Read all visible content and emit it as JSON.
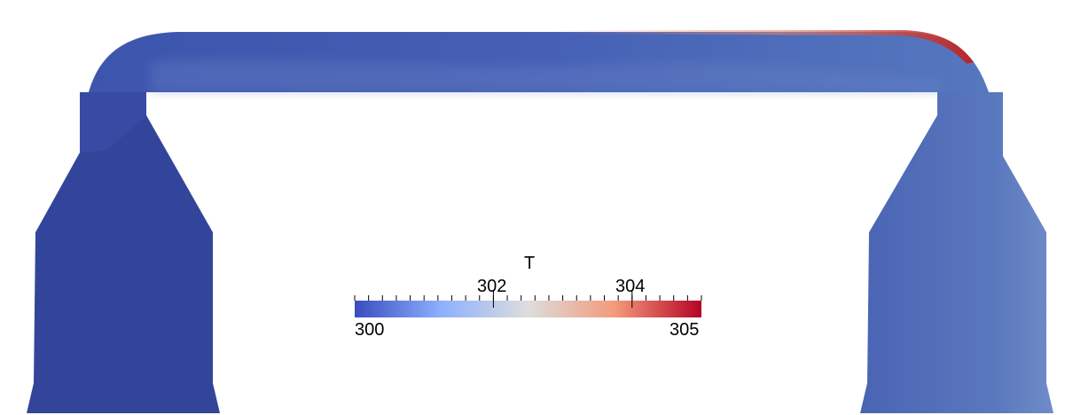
{
  "scene": {
    "type": "CFD temperature field render",
    "colors": {
      "low": "#3b4cc0",
      "mid": "#dddddd",
      "high": "#b40426",
      "background": "#ffffff"
    }
  },
  "colorbar": {
    "title": "T",
    "min_label": "300",
    "max_label": "305",
    "major_ticks": [
      "302",
      "304"
    ],
    "range": [
      300,
      305
    ],
    "minor_tick_count": 26,
    "colormap": "cool-to-warm"
  }
}
